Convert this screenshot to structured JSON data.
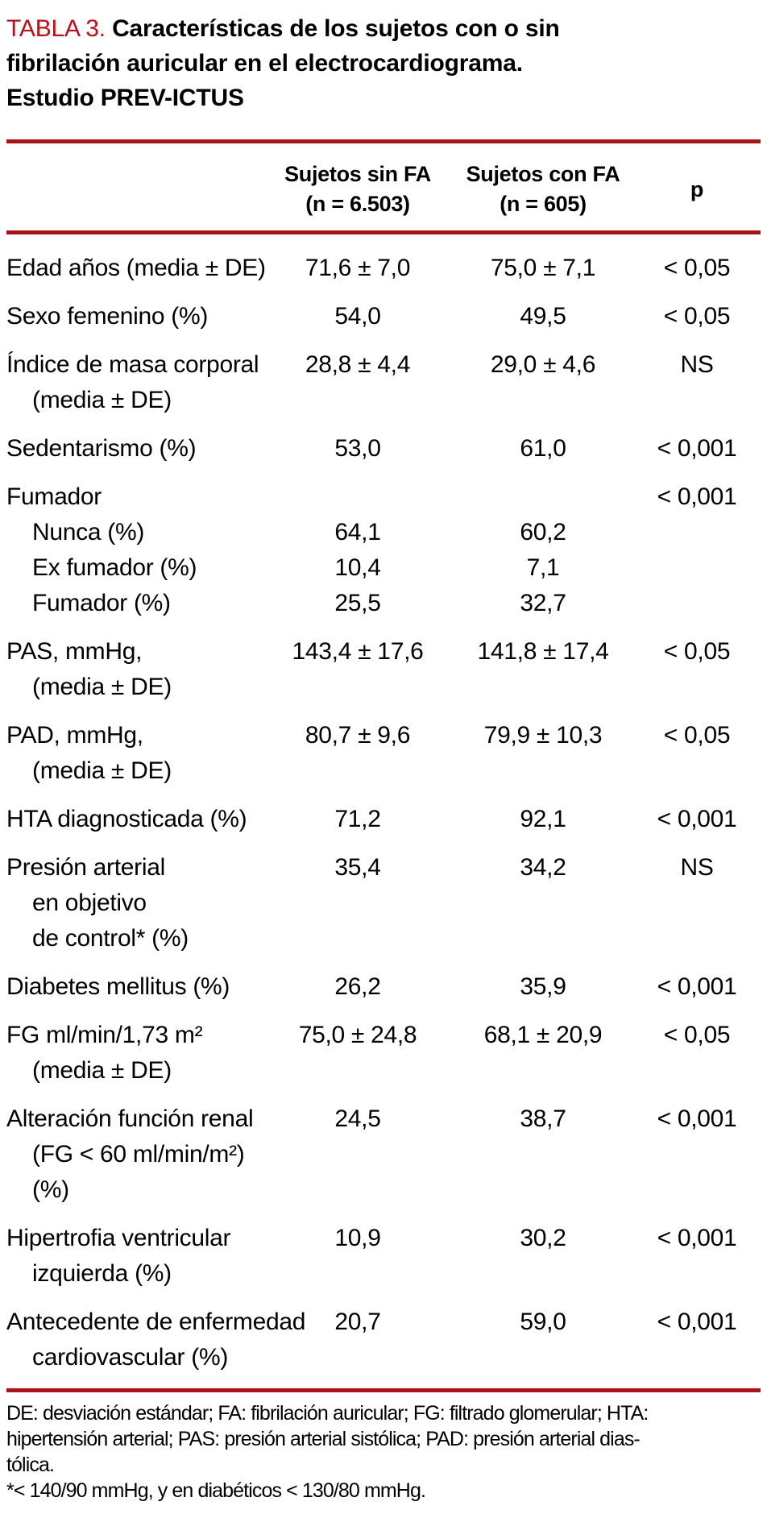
{
  "colors": {
    "accent_red": "#a81219",
    "title_tag_red": "#b5121b",
    "text": "#000000",
    "background": "#ffffff"
  },
  "title": {
    "tag": "TABLA 3.",
    "line1": "Características de los sujetos con o sin",
    "line2": "fibrilación auricular en el electrocardiograma.",
    "line3": "Estudio PREV-ICTUS"
  },
  "table": {
    "header": {
      "col2_line1": "Sujetos sin FA",
      "col2_line2": "(n = 6.503)",
      "col3_line1": "Sujetos con FA",
      "col3_line2": "(n = 605)",
      "p": "p"
    },
    "rows": [
      {
        "lines": [
          "Edad años (media ± DE)"
        ],
        "v1": "71,6 ± 7,0",
        "v2": "75,0 ± 7,1",
        "p": "< 0,05"
      },
      {
        "lines": [
          "Sexo femenino (%)"
        ],
        "v1": "54,0",
        "v2": "49,5",
        "p": "< 0,05"
      },
      {
        "lines": [
          "Índice de masa corporal",
          "(media ± DE)"
        ],
        "v1": "28,8 ± 4,4",
        "v2": "29,0 ± 4,6",
        "p": "NS"
      },
      {
        "lines": [
          "Sedentarismo (%)"
        ],
        "v1": "53,0",
        "v2": "61,0",
        "p": "< 0,001"
      },
      {
        "lines": [
          "Fumador"
        ],
        "v1": "",
        "v2": "",
        "p": "< 0,001",
        "sub": [
          {
            "label": "Nunca (%)",
            "v1": "64,1",
            "v2": "60,2"
          },
          {
            "label": "Ex fumador (%)",
            "v1": "10,4",
            "v2": "7,1"
          },
          {
            "label": "Fumador (%)",
            "v1": "25,5",
            "v2": "32,7"
          }
        ]
      },
      {
        "lines": [
          "PAS, mmHg,",
          "(media ± DE)"
        ],
        "v1": "143,4 ± 17,6",
        "v2": "141,8 ± 17,4",
        "p": "< 0,05"
      },
      {
        "lines": [
          "PAD, mmHg,",
          "(media ± DE)"
        ],
        "v1": "80,7 ± 9,6",
        "v2": "79,9 ± 10,3",
        "p": "< 0,05"
      },
      {
        "lines": [
          "HTA diagnosticada (%)"
        ],
        "v1": "71,2",
        "v2": "92,1",
        "p": "< 0,001"
      },
      {
        "lines": [
          "Presión arterial",
          "en objetivo",
          "de control* (%)"
        ],
        "v1": "35,4",
        "v2": "34,2",
        "p": "NS"
      },
      {
        "lines": [
          "Diabetes mellitus (%)"
        ],
        "v1": "26,2",
        "v2": "35,9",
        "p": "< 0,001"
      },
      {
        "lines": [
          "FG ml/min/1,73 m²",
          "(media ± DE)"
        ],
        "v1": "75,0 ± 24,8",
        "v2": "68,1 ± 20,9",
        "p": "< 0,05"
      },
      {
        "lines": [
          "Alteración función renal",
          "(FG < 60 ml/min/m²)",
          "(%)"
        ],
        "v1": "24,5",
        "v2": "38,7",
        "p": "< 0,001"
      },
      {
        "lines": [
          "Hipertrofia ventricular",
          "izquierda (%)"
        ],
        "v1": "10,9",
        "v2": "30,2",
        "p": "< 0,001"
      },
      {
        "lines": [
          "Antecedente de enfermedad",
          "cardiovascular (%)"
        ],
        "v1": "20,7",
        "v2": "59,0",
        "p": "< 0,001"
      }
    ]
  },
  "footnotes": [
    "DE: desviación estándar; FA: fibrilación auricular; FG: filtrado glomerular; HTA:",
    "hipertensión arterial; PAS: presión arterial sistólica; PAD: presión arterial dias-",
    "tólica.",
    "*< 140/90 mmHg, y en diabéticos < 130/80 mmHg."
  ]
}
